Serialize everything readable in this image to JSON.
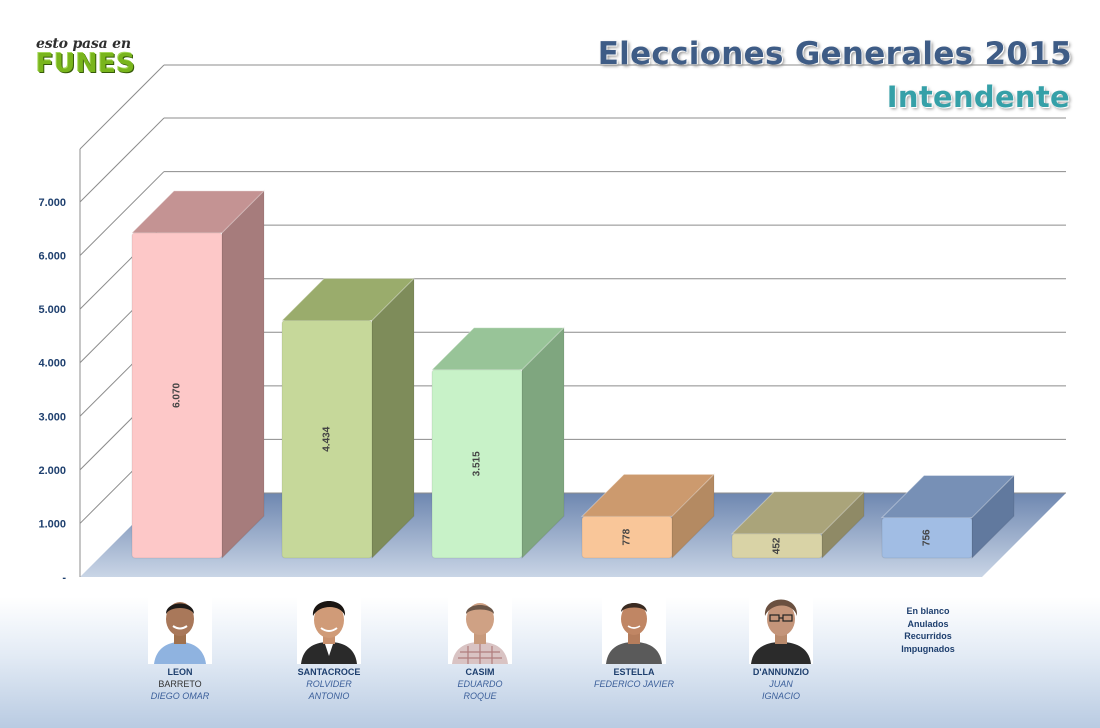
{
  "logo": {
    "top": "esto pasa en",
    "main": "FUNES"
  },
  "header": {
    "title": "Elecciones Generales 2015",
    "subtitle": "Intendente"
  },
  "chart_data": {
    "type": "bar",
    "title": "Elecciones Generales 2015",
    "subtitle": "Intendente",
    "categories": [
      "LEON",
      "SANTACROCE",
      "CASIM",
      "ESTELLA",
      "D'ANNUNZIO",
      "En blanco Anulados Recurridos Impugnados"
    ],
    "values": [
      6070,
      4434,
      3515,
      778,
      452,
      756
    ],
    "value_labels": [
      "6.070",
      "4.434",
      "3.515",
      "778",
      "452",
      "756"
    ],
    "yticks": [
      {
        "value": 0,
        "label": "-"
      },
      {
        "value": 1000,
        "label": "1.000"
      },
      {
        "value": 2000,
        "label": "2.000"
      },
      {
        "value": 3000,
        "label": "3.000"
      },
      {
        "value": 4000,
        "label": "4.000"
      },
      {
        "value": 5000,
        "label": "5.000"
      },
      {
        "value": 6000,
        "label": "6.000"
      },
      {
        "value": 7000,
        "label": "7.000"
      }
    ],
    "ylim": [
      0,
      7000
    ],
    "grid": true,
    "legend": "none",
    "bar_colors": [
      {
        "front": "#fdc8c8",
        "side": "#a67c7c",
        "top": "#c49393"
      },
      {
        "front": "#c6d89a",
        "side": "#7e8c5a",
        "top": "#9aac6c"
      },
      {
        "front": "#c8f2c8",
        "side": "#7fa67f",
        "top": "#98c498"
      },
      {
        "front": "#f9c699",
        "side": "#b48a62",
        "top": "#cc9a6e"
      },
      {
        "front": "#d9d3a6",
        "side": "#8f8a66",
        "top": "#aaa47a"
      },
      {
        "front": "#a1bde4",
        "side": "#61799e",
        "top": "#7790b6"
      }
    ]
  },
  "candidates": [
    {
      "last": "LEON",
      "first": "BARRETO",
      "given": "DIEGO OMAR"
    },
    {
      "last": "SANTACROCE",
      "first": "ROLVIDER",
      "given": "ANTONIO"
    },
    {
      "last": "CASIM",
      "first": "EDUARDO",
      "given": "ROQUE"
    },
    {
      "last": "ESTELLA",
      "first": "FEDERICO JAVIER",
      "given": ""
    },
    {
      "last": "D'ANNUNZIO",
      "first": "JUAN",
      "given": "IGNACIO"
    }
  ],
  "others": {
    "l1": "En blanco",
    "l2": "Anulados",
    "l3": "Recurridos",
    "l4": "Impugnados"
  }
}
